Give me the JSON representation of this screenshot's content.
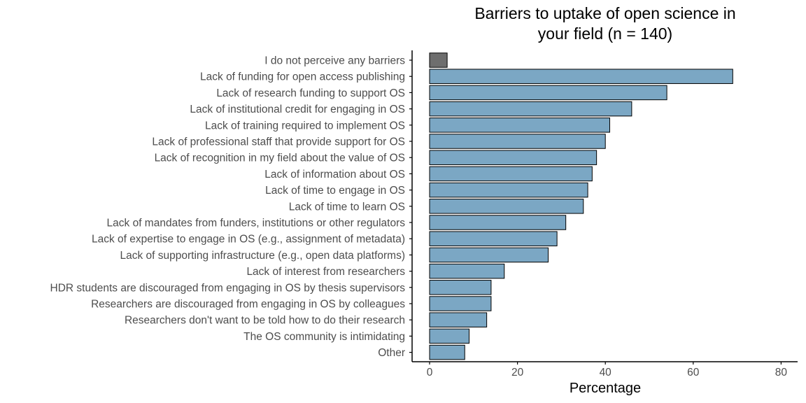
{
  "chart_data": {
    "type": "bar",
    "orientation": "horizontal",
    "title_lines": [
      "Barriers to uptake of open science in",
      "your field (n = 140)"
    ],
    "xlabel": "Percentage",
    "ylabel": "",
    "xlim": [
      0,
      80
    ],
    "x_ticks": [
      0,
      20,
      40,
      60,
      80
    ],
    "grid": false,
    "legend": "none",
    "categories": [
      "I do not perceive any barriers",
      "Lack of funding for open access publishing",
      "Lack of research funding to support OS",
      "Lack of institutional credit for engaging in OS",
      "Lack of training required to implement OS",
      "Lack of professional staff that provide support for OS",
      "Lack of recognition in my field about the value of OS",
      "Lack of information about OS",
      "Lack of time to engage in OS",
      "Lack of time to learn OS",
      "Lack of mandates from funders, institutions or other regulators",
      "Lack of expertise to engage in OS (e.g., assignment of metadata)",
      "Lack of supporting infrastructure (e.g., open data platforms)",
      "Lack of interest from researchers",
      "HDR students are discouraged from engaging in OS by thesis supervisors",
      "Researchers are discouraged from engaging in OS by colleagues",
      "Researchers don't want to be told how to do their research",
      "The OS community is intimidating",
      "Other"
    ],
    "values": [
      4,
      69,
      54,
      46,
      41,
      40,
      38,
      37,
      36,
      35,
      31,
      29,
      27,
      17,
      14,
      14,
      13,
      9,
      8
    ],
    "colors": {
      "default_bar": "#7ba7c4",
      "highlight_bar": "#6e6e6e",
      "bar_stroke": "#000000",
      "axis": "#000000",
      "tick_text": "#4d4d4d"
    },
    "highlight_index": 0
  }
}
